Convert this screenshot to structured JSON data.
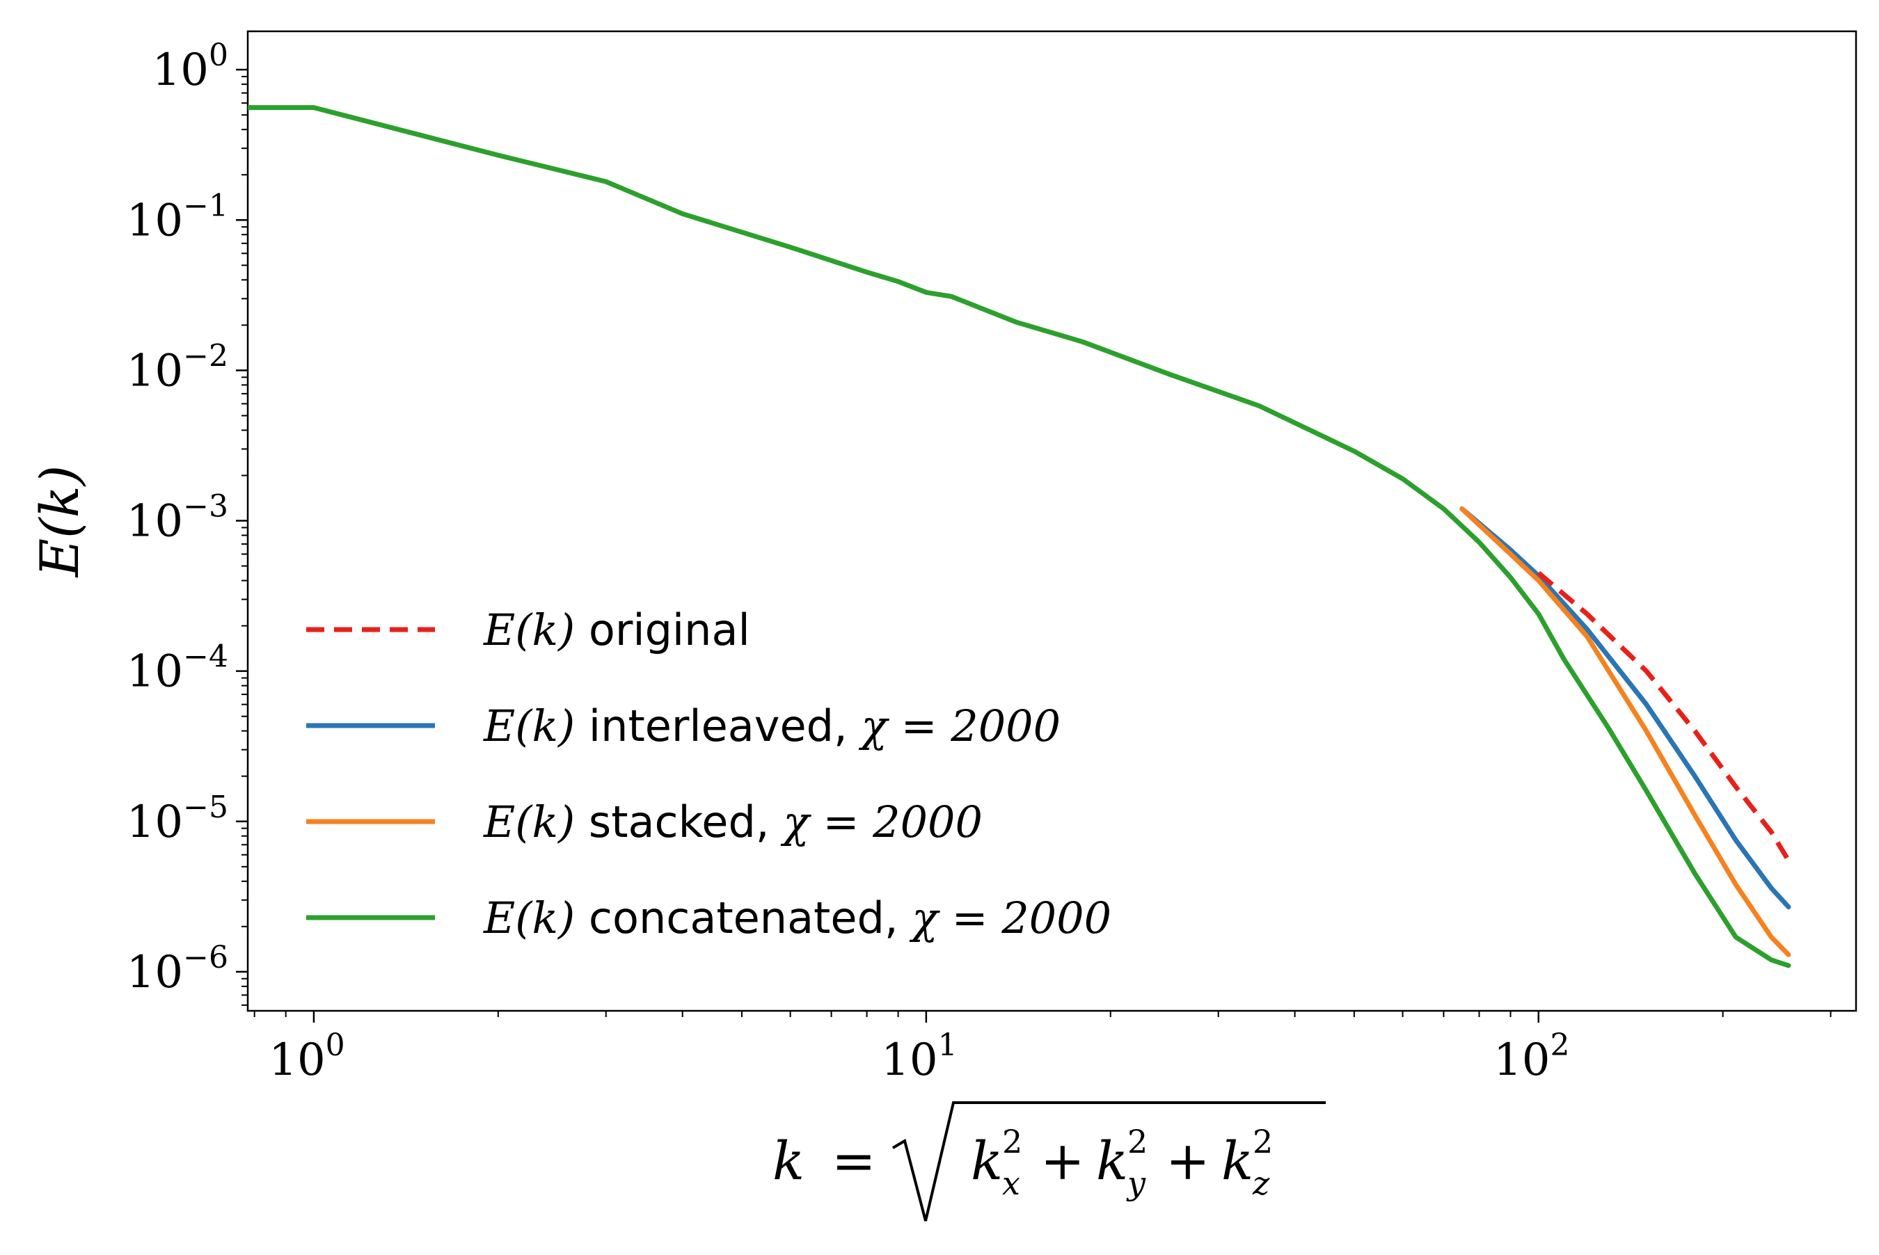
{
  "chart_data": {
    "type": "line",
    "title": "",
    "xlabel": "k = √(k_x² + k_y² + k_z²)",
    "ylabel": "E(k)",
    "xscale": "log",
    "yscale": "log",
    "xlim": [
      0.78,
      330
    ],
    "ylim": [
      5.5e-07,
      1.8
    ],
    "x_ticks": [
      {
        "value": 1,
        "base": "10",
        "exp": "0"
      },
      {
        "value": 10,
        "base": "10",
        "exp": "1"
      },
      {
        "value": 100,
        "base": "10",
        "exp": "2"
      }
    ],
    "y_ticks": [
      {
        "value": 1,
        "base": "10",
        "exp": "0"
      },
      {
        "value": 0.1,
        "base": "10",
        "exp": "−1"
      },
      {
        "value": 0.01,
        "base": "10",
        "exp": "−2"
      },
      {
        "value": 0.001,
        "base": "10",
        "exp": "−3"
      },
      {
        "value": 0.0001,
        "base": "10",
        "exp": "−4"
      },
      {
        "value": 1e-05,
        "base": "10",
        "exp": "−5"
      },
      {
        "value": 1e-06,
        "base": "10",
        "exp": "−6"
      }
    ],
    "grid": false,
    "legend_position": "lower-left",
    "series": [
      {
        "name": "E(k) original",
        "legend_math": "E(k)",
        "legend_text": "original",
        "legend_chi": "",
        "color": "#e8201a",
        "dashed": true,
        "x": [
          100,
          120,
          150,
          180,
          210,
          240,
          256
        ],
        "y": [
          0.00045,
          0.00024,
          0.0001,
          4e-05,
          1.7e-05,
          8.5e-06,
          5.5e-06
        ]
      },
      {
        "name": "E(k) interleaved, χ = 2000",
        "legend_math": "E(k)",
        "legend_text": "interleaved,",
        "legend_chi": "χ = 2000",
        "color": "#2a75b4",
        "dashed": false,
        "x": [
          75,
          90,
          100,
          120,
          150,
          180,
          210,
          240,
          256
        ],
        "y": [
          0.0012,
          0.00064,
          0.00043,
          0.00019,
          6e-05,
          2e-05,
          7.5e-06,
          3.6e-06,
          2.7e-06
        ]
      },
      {
        "name": "E(k) stacked, χ = 2000",
        "legend_math": "E(k)",
        "legend_text": "stacked,",
        "legend_chi": "χ = 2000",
        "color": "#f5821f",
        "dashed": false,
        "x": [
          75,
          90,
          100,
          120,
          150,
          180,
          210,
          240,
          256
        ],
        "y": [
          0.0012,
          0.0006,
          0.0004,
          0.00017,
          4e-05,
          1.1e-05,
          3.8e-06,
          1.7e-06,
          1.3e-06
        ]
      },
      {
        "name": "E(k) concatenated, χ = 2000",
        "legend_math": "E(k)",
        "legend_text": "concatenated,",
        "legend_chi": "χ = 2000",
        "color": "#2ca02c",
        "dashed": false,
        "x": [
          0.78,
          1,
          2,
          3,
          4,
          6,
          8,
          9,
          10,
          11,
          14,
          18,
          25,
          35,
          50,
          60,
          70,
          80,
          90,
          100,
          110,
          130,
          150,
          180,
          210,
          240,
          256
        ],
        "y": [
          0.56,
          0.56,
          0.27,
          0.18,
          0.11,
          0.066,
          0.045,
          0.039,
          0.033,
          0.031,
          0.021,
          0.0155,
          0.0094,
          0.0058,
          0.0029,
          0.0019,
          0.0012,
          0.00072,
          0.00042,
          0.00024,
          0.00012,
          4.2e-05,
          1.6e-05,
          4.5e-06,
          1.7e-06,
          1.2e-06,
          1.1e-06
        ]
      }
    ]
  }
}
